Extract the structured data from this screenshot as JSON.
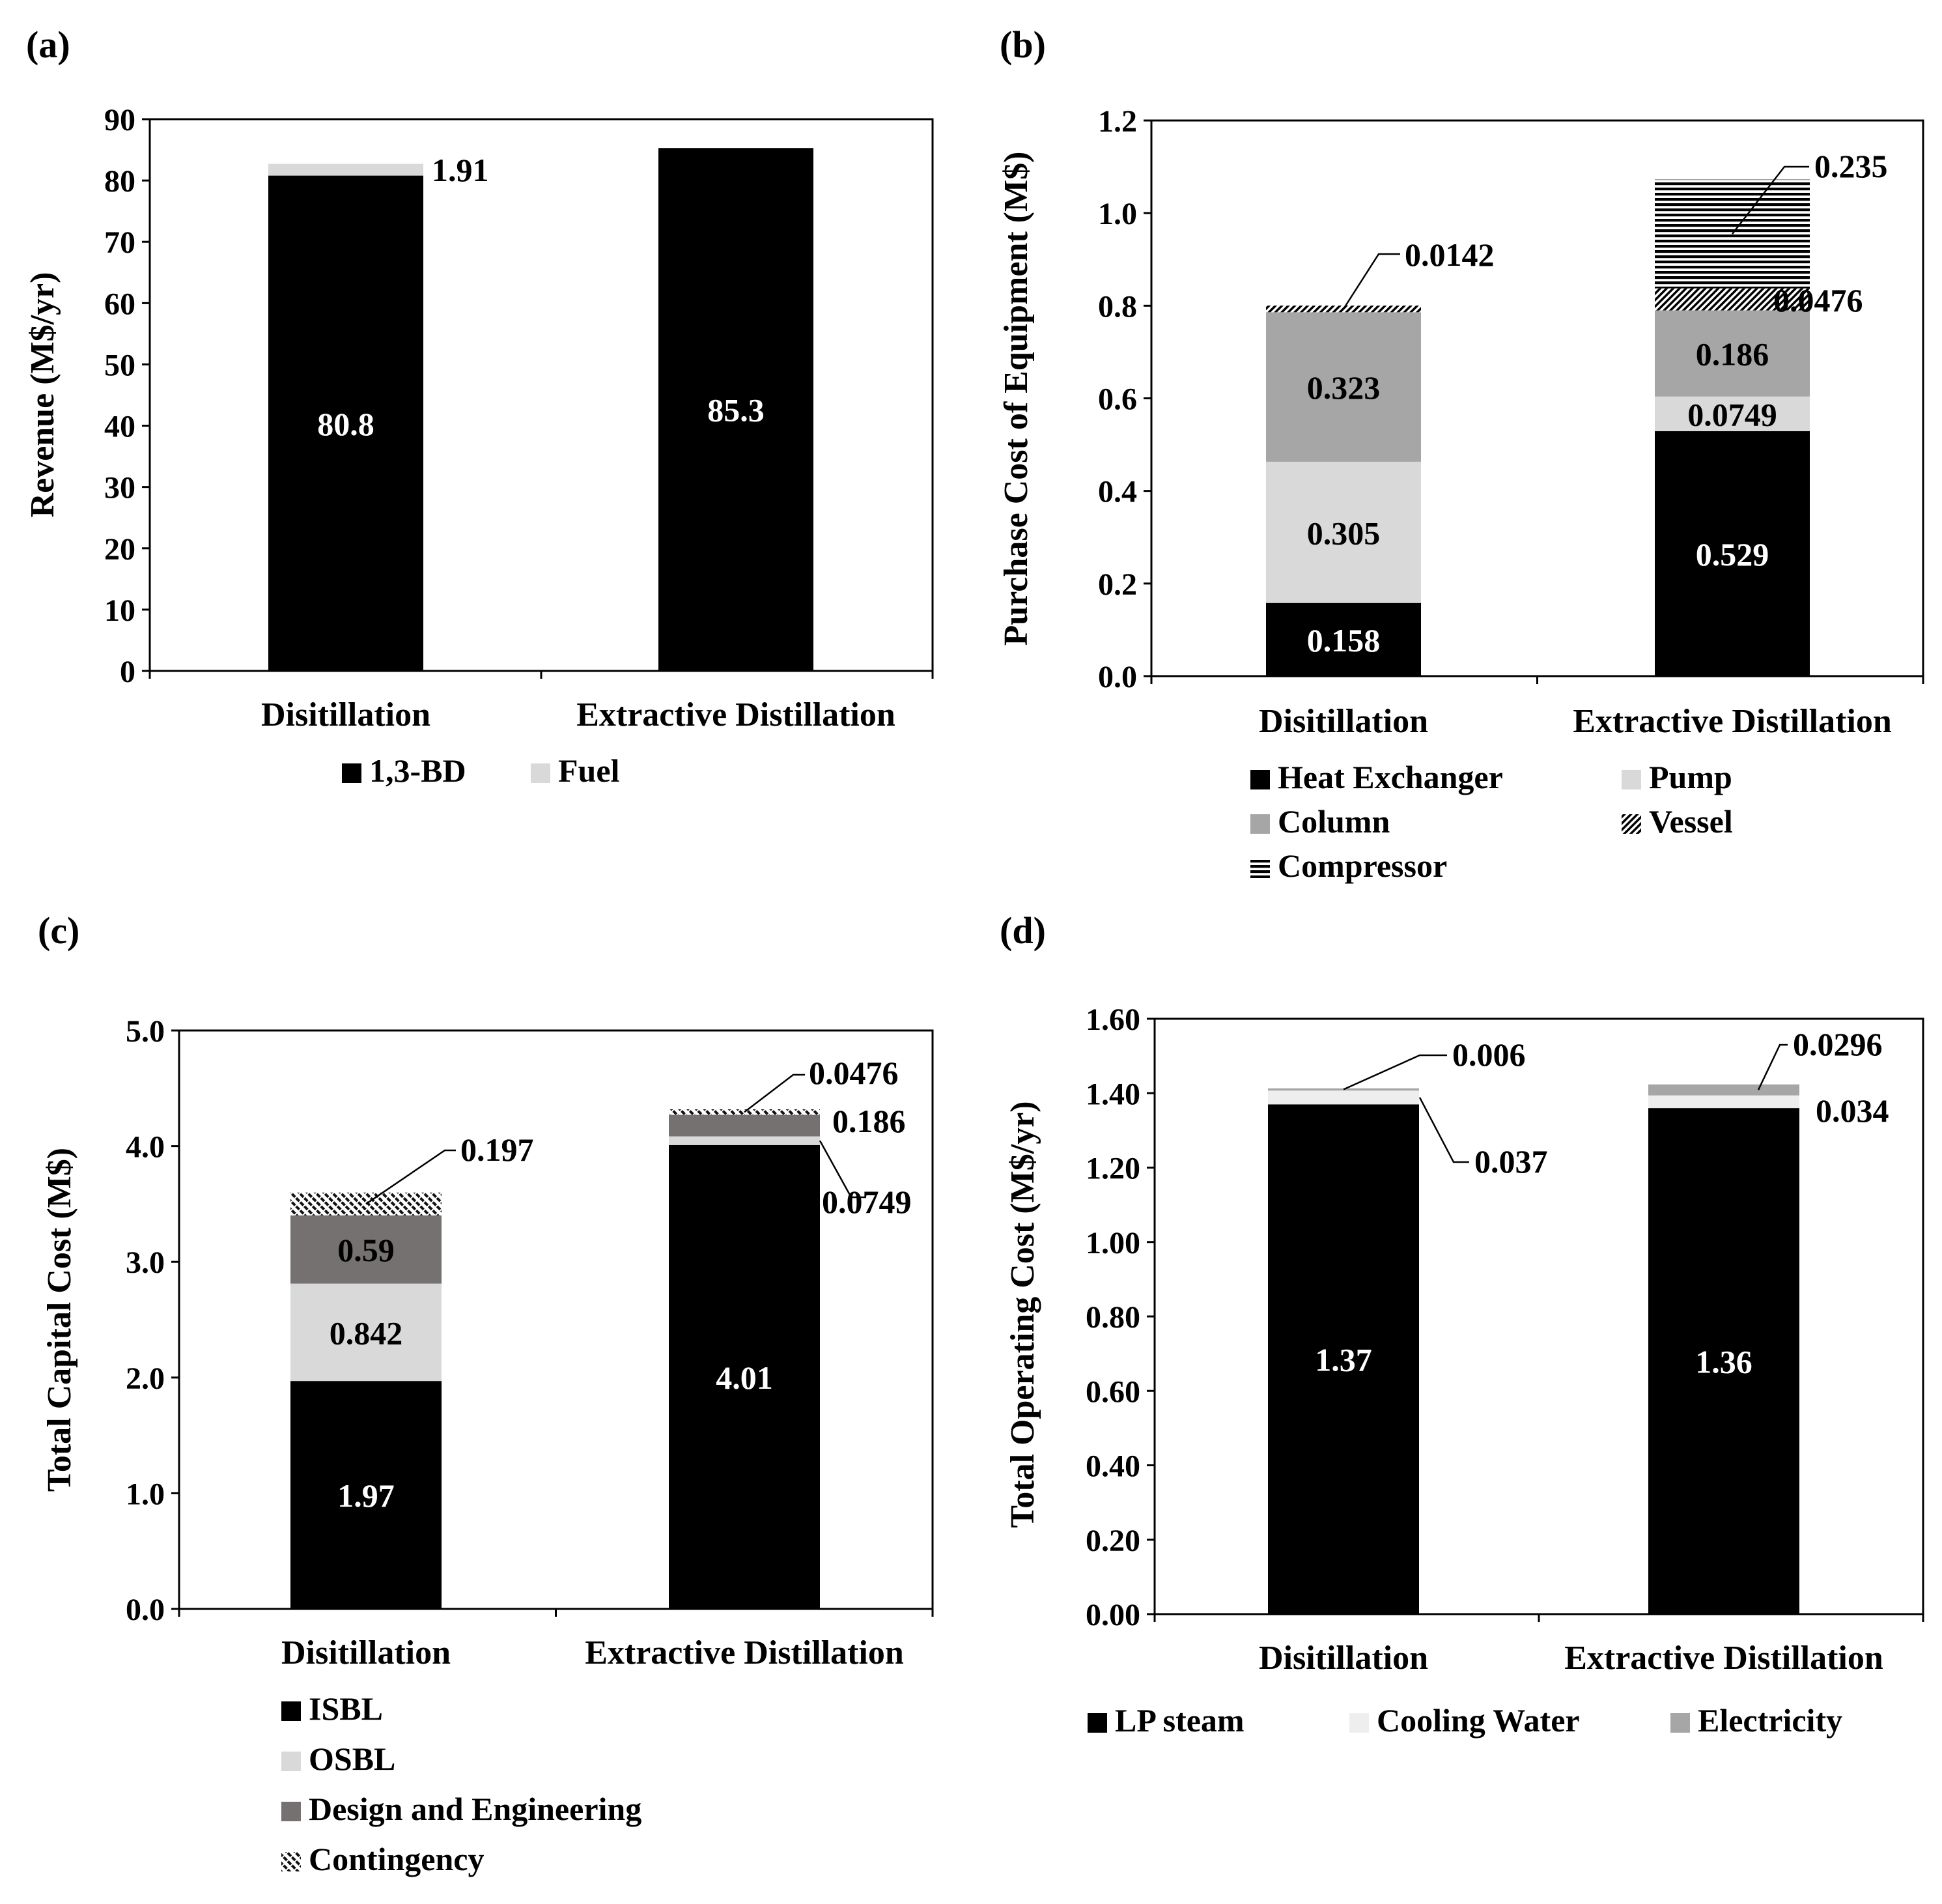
{
  "colors": {
    "black": "#000000",
    "light_gray": "#d9d9d9",
    "mid_gray": "#a6a6a6",
    "dark_gray": "#767171",
    "very_light_gray": "#eeeeee",
    "white": "#ffffff"
  },
  "chart_data": [
    {
      "panel": "(a)",
      "type": "bar",
      "stacked": true,
      "categories": [
        "Disitillation",
        "Extractive Distillation"
      ],
      "ylabel": "Revenue (M$/yr)",
      "ylim": [
        0,
        90
      ],
      "ytick_step": 10,
      "ytick_decimals": 0,
      "series": [
        {
          "name": "1,3-BD",
          "values": [
            80.8,
            85.3
          ],
          "fill": "black"
        },
        {
          "name": "Fuel",
          "values": [
            1.91,
            0
          ],
          "fill": "light_gray"
        }
      ],
      "data_labels": [
        {
          "text": "80.8",
          "series": 0,
          "category": 0,
          "inside": true
        },
        {
          "text": "85.3",
          "series": 0,
          "category": 1,
          "inside": true
        },
        {
          "text": "1.91",
          "series": 1,
          "category": 0,
          "inside": false
        }
      ],
      "legend_layout": "row"
    },
    {
      "panel": "(b)",
      "type": "bar",
      "stacked": true,
      "categories": [
        "Disitillation",
        "Extractive Distillation"
      ],
      "ylabel": "Purchase Cost of Equipment (M$)",
      "ylim": [
        0,
        1.2
      ],
      "ytick_step": 0.2,
      "ytick_decimals": 1,
      "series": [
        {
          "name": "Heat Exchanger",
          "values": [
            0.158,
            0.529
          ],
          "fill": "black"
        },
        {
          "name": "Pump",
          "values": [
            0.305,
            0.0749
          ],
          "fill": "light_gray"
        },
        {
          "name": "Column",
          "values": [
            0.323,
            0.186
          ],
          "fill": "mid_gray"
        },
        {
          "name": "Vessel",
          "values": [
            0.0142,
            0.0476
          ],
          "fill": "diag"
        },
        {
          "name": "Compressor",
          "values": [
            0,
            0.235
          ],
          "fill": "horiz"
        }
      ],
      "data_labels": [
        {
          "text": "0.158",
          "series": 0,
          "category": 0,
          "inside": true
        },
        {
          "text": "0.305",
          "series": 1,
          "category": 0,
          "inside": true
        },
        {
          "text": "0.323",
          "series": 2,
          "category": 0,
          "inside": true
        },
        {
          "text": "0.0142",
          "series": 3,
          "category": 0,
          "inside": false
        },
        {
          "text": "0.529",
          "series": 0,
          "category": 1,
          "inside": true
        },
        {
          "text": "0.0749",
          "series": 1,
          "category": 1,
          "inside": true
        },
        {
          "text": "0.186",
          "series": 2,
          "category": 1,
          "inside": true
        },
        {
          "text": "0.0476",
          "series": 3,
          "category": 1,
          "inside": false
        },
        {
          "text": "0.235",
          "series": 4,
          "category": 1,
          "inside": false
        }
      ],
      "legend_layout": "grid2"
    },
    {
      "panel": "(c)",
      "type": "bar",
      "stacked": true,
      "categories": [
        "Disitillation",
        "Extractive Distillation"
      ],
      "ylabel": "Total Capital Cost (M$)",
      "ylim": [
        0,
        5.0
      ],
      "ytick_step": 1.0,
      "ytick_decimals": 1,
      "series": [
        {
          "name": "ISBL",
          "values": [
            1.97,
            4.01
          ],
          "fill": "black"
        },
        {
          "name": "OSBL",
          "values": [
            0.842,
            0.0749
          ],
          "fill": "light_gray"
        },
        {
          "name": "Design and Engineering",
          "values": [
            0.59,
            0.186
          ],
          "fill": "dark_gray"
        },
        {
          "name": "Contingency",
          "values": [
            0.197,
            0.0476
          ],
          "fill": "cross"
        }
      ],
      "data_labels": [
        {
          "text": "1.97",
          "series": 0,
          "category": 0,
          "inside": true
        },
        {
          "text": "0.842",
          "series": 1,
          "category": 0,
          "inside": true
        },
        {
          "text": "0.59",
          "series": 2,
          "category": 0,
          "inside": true
        },
        {
          "text": "0.197",
          "series": 3,
          "category": 0,
          "inside": false
        },
        {
          "text": "4.01",
          "series": 0,
          "category": 1,
          "inside": true
        },
        {
          "text": "0.0749",
          "series": 1,
          "category": 1,
          "inside": false
        },
        {
          "text": "0.186",
          "series": 2,
          "category": 1,
          "inside": false
        },
        {
          "text": "0.0476",
          "series": 3,
          "category": 1,
          "inside": false
        }
      ],
      "legend_layout": "column"
    },
    {
      "panel": "(d)",
      "type": "bar",
      "stacked": true,
      "categories": [
        "Disitillation",
        "Extractive Distillation"
      ],
      "ylabel": "Total Operating Cost (M$/yr)",
      "ylim": [
        0,
        1.6
      ],
      "ytick_step": 0.2,
      "ytick_decimals": 2,
      "series": [
        {
          "name": "LP steam",
          "values": [
            1.37,
            1.36
          ],
          "fill": "black"
        },
        {
          "name": "Cooling Water",
          "values": [
            0.037,
            0.034
          ],
          "fill": "very_light_gray"
        },
        {
          "name": "Electricity",
          "values": [
            0.006,
            0.0296
          ],
          "fill": "mid_gray"
        }
      ],
      "data_labels": [
        {
          "text": "1.37",
          "series": 0,
          "category": 0,
          "inside": true
        },
        {
          "text": "0.037",
          "series": 1,
          "category": 0,
          "inside": false
        },
        {
          "text": "0.006",
          "series": 2,
          "category": 0,
          "inside": false
        },
        {
          "text": "1.36",
          "series": 0,
          "category": 1,
          "inside": true
        },
        {
          "text": "0.034",
          "series": 1,
          "category": 1,
          "inside": false
        },
        {
          "text": "0.0296",
          "series": 2,
          "category": 1,
          "inside": false
        }
      ],
      "legend_layout": "row"
    }
  ]
}
